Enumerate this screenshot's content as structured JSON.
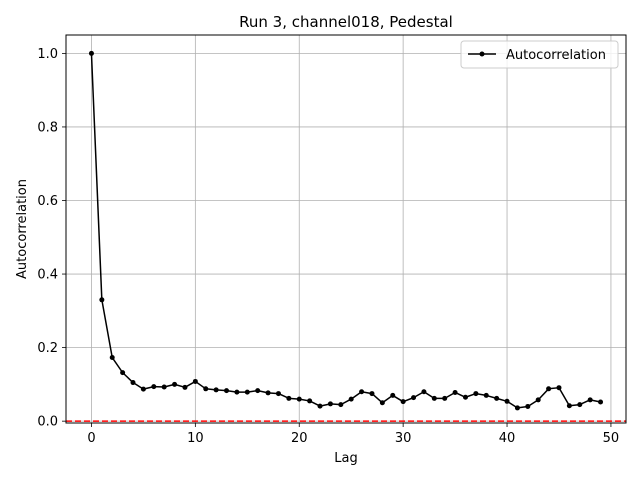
{
  "chart_data": {
    "type": "line",
    "title": "Run 3, channel018, Pedestal",
    "xlabel": "Lag",
    "ylabel": "Autocorrelation",
    "xlim": [
      -2.45,
      51.45
    ],
    "ylim": [
      -0.005,
      1.05
    ],
    "xticks": [
      0,
      10,
      20,
      30,
      40,
      50
    ],
    "xtick_labels": [
      "0",
      "10",
      "20",
      "30",
      "40",
      "50"
    ],
    "yticks": [
      0.0,
      0.2,
      0.4,
      0.6,
      0.8,
      1.0
    ],
    "ytick_labels": [
      "0.0",
      "0.2",
      "0.4",
      "0.6",
      "0.8",
      "1.0"
    ],
    "grid": true,
    "legend_position": "top-right",
    "series": [
      {
        "name": "Autocorrelation",
        "color": "#000000",
        "marker": "circle",
        "x": [
          0,
          1,
          2,
          3,
          4,
          5,
          6,
          7,
          8,
          9,
          10,
          11,
          12,
          13,
          14,
          15,
          16,
          17,
          18,
          19,
          20,
          21,
          22,
          23,
          24,
          25,
          26,
          27,
          28,
          29,
          30,
          31,
          32,
          33,
          34,
          35,
          36,
          37,
          38,
          39,
          40,
          41,
          42,
          43,
          44,
          45,
          46,
          47,
          48,
          49
        ],
        "values": [
          1.0,
          0.33,
          0.173,
          0.132,
          0.105,
          0.087,
          0.094,
          0.093,
          0.1,
          0.092,
          0.108,
          0.088,
          0.085,
          0.083,
          0.079,
          0.079,
          0.083,
          0.077,
          0.075,
          0.062,
          0.06,
          0.055,
          0.041,
          0.047,
          0.045,
          0.06,
          0.08,
          0.075,
          0.05,
          0.07,
          0.053,
          0.064,
          0.08,
          0.062,
          0.062,
          0.078,
          0.065,
          0.075,
          0.07,
          0.062,
          0.054,
          0.036,
          0.04,
          0.058,
          0.088,
          0.091,
          0.042,
          0.045,
          0.058,
          0.052
        ]
      }
    ],
    "reference_line": {
      "y": 0,
      "color": "#ff0000",
      "style": "dashed"
    }
  }
}
